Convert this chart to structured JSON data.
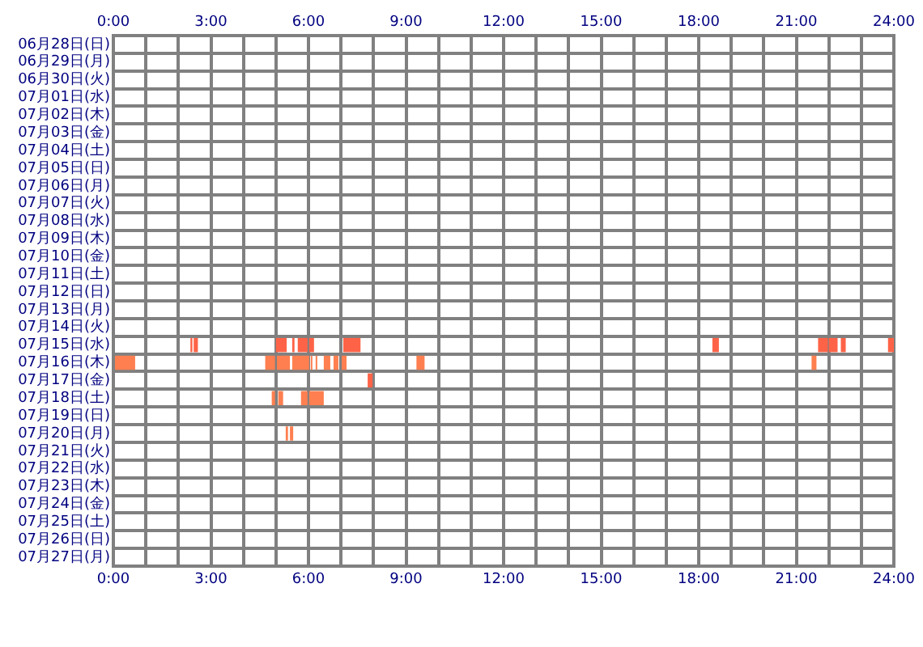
{
  "chart_data": {
    "type": "bar",
    "orientation": "horizontal",
    "grid": true,
    "legend": false,
    "categories": [
      "06月28日(日)",
      "06月29日(月)",
      "06月30日(火)",
      "07月01日(水)",
      "07月02日(木)",
      "07月03日(金)",
      "07月04日(土)",
      "07月05日(日)",
      "07月06日(月)",
      "07月07日(火)",
      "07月08日(水)",
      "07月09日(木)",
      "07月10日(金)",
      "07月11日(土)",
      "07月12日(日)",
      "07月13日(月)",
      "07月14日(火)",
      "07月15日(水)",
      "07月16日(木)",
      "07月17日(金)",
      "07月18日(土)",
      "07月19日(日)",
      "07月20日(月)",
      "07月21日(火)",
      "07月22日(水)",
      "07月23日(木)",
      "07月24日(金)",
      "07月25日(土)",
      "07月26日(日)",
      "07月27日(月)"
    ],
    "xlim": [
      0,
      24
    ],
    "xticks": [
      {
        "value": 0,
        "label": "0:00"
      },
      {
        "value": 1,
        "label": null
      },
      {
        "value": 2,
        "label": null
      },
      {
        "value": 3,
        "label": "3:00"
      },
      {
        "value": 4,
        "label": null
      },
      {
        "value": 5,
        "label": null
      },
      {
        "value": 6,
        "label": "6:00"
      },
      {
        "value": 7,
        "label": null
      },
      {
        "value": 8,
        "label": null
      },
      {
        "value": 9,
        "label": "9:00"
      },
      {
        "value": 10,
        "label": null
      },
      {
        "value": 11,
        "label": null
      },
      {
        "value": 12,
        "label": "12:00"
      },
      {
        "value": 13,
        "label": null
      },
      {
        "value": 14,
        "label": null
      },
      {
        "value": 15,
        "label": "15:00"
      },
      {
        "value": 16,
        "label": null
      },
      {
        "value": 17,
        "label": null
      },
      {
        "value": 18,
        "label": "18:00"
      },
      {
        "value": 19,
        "label": null
      },
      {
        "value": 20,
        "label": null
      },
      {
        "value": 21,
        "label": "21:00"
      },
      {
        "value": 22,
        "label": null
      },
      {
        "value": 23,
        "label": null
      },
      {
        "value": 24,
        "label": "24:00"
      }
    ],
    "x2lim": [
      0,
      24
    ],
    "x2ticks": [
      {
        "value": 0,
        "label": "0:00"
      },
      {
        "value": 1,
        "label": null
      },
      {
        "value": 2,
        "label": null
      },
      {
        "value": 3,
        "label": "3:00"
      },
      {
        "value": 4,
        "label": null
      },
      {
        "value": 5,
        "label": null
      },
      {
        "value": 6,
        "label": "6:00"
      },
      {
        "value": 7,
        "label": null
      },
      {
        "value": 8,
        "label": null
      },
      {
        "value": 9,
        "label": "9:00"
      },
      {
        "value": 10,
        "label": null
      },
      {
        "value": 11,
        "label": null
      },
      {
        "value": 12,
        "label": "12:00"
      },
      {
        "value": 13,
        "label": null
      },
      {
        "value": 14,
        "label": null
      },
      {
        "value": 15,
        "label": "15:00"
      },
      {
        "value": 16,
        "label": null
      },
      {
        "value": 17,
        "label": null
      },
      {
        "value": 18,
        "label": "18:00"
      },
      {
        "value": 19,
        "label": null
      },
      {
        "value": 20,
        "label": null
      },
      {
        "value": 21,
        "label": "21:00"
      },
      {
        "value": 22,
        "label": null
      },
      {
        "value": 23,
        "label": null
      },
      {
        "value": 24,
        "label": "24:00"
      }
    ],
    "series": [
      {
        "base": [
          null,
          null,
          null,
          null,
          null,
          null,
          null,
          null,
          null,
          null,
          null,
          null,
          null,
          null,
          null,
          null,
          null,
          2.37,
          0,
          7.82,
          4.87,
          null,
          5.3,
          null,
          null,
          null,
          null,
          null,
          null,
          null
        ],
        "values": [
          null,
          null,
          null,
          null,
          null,
          null,
          null,
          null,
          null,
          null,
          null,
          null,
          null,
          null,
          null,
          null,
          null,
          0.06,
          0.67,
          0.15,
          0.1,
          null,
          0.07,
          null,
          null,
          null,
          null,
          null,
          null,
          null
        ],
        "colors": [
          null,
          null,
          null,
          null,
          null,
          null,
          null,
          null,
          null,
          null,
          null,
          null,
          null,
          null,
          null,
          null,
          null,
          "#ff6347",
          "#ff7f50",
          "#ff6347",
          "#ff7f50",
          null,
          "#ff7f50",
          null,
          null,
          null,
          null,
          null,
          null,
          null
        ]
      },
      {
        "base": [
          null,
          null,
          null,
          null,
          null,
          null,
          null,
          null,
          null,
          null,
          null,
          null,
          null,
          null,
          null,
          null,
          null,
          2.47,
          4.67,
          null,
          5.07,
          null,
          5.43,
          null,
          null,
          null,
          null,
          null,
          null,
          null
        ],
        "values": [
          null,
          null,
          null,
          null,
          null,
          null,
          null,
          null,
          null,
          null,
          null,
          null,
          null,
          null,
          null,
          null,
          null,
          0.13,
          0.3,
          null,
          0.15,
          null,
          0.1,
          null,
          null,
          null,
          null,
          null,
          null,
          null
        ],
        "colors": [
          null,
          null,
          null,
          null,
          null,
          null,
          null,
          null,
          null,
          null,
          null,
          null,
          null,
          null,
          null,
          null,
          null,
          "#ff6347",
          "#ff7f50",
          null,
          "#ff7f50",
          null,
          "#ff7f50",
          null,
          null,
          null,
          null,
          null,
          null,
          null
        ]
      },
      {
        "base": [
          null,
          null,
          null,
          null,
          null,
          null,
          null,
          null,
          null,
          null,
          null,
          null,
          null,
          null,
          null,
          null,
          null,
          5.0,
          5.03,
          null,
          5.77,
          null,
          null,
          null,
          null,
          null,
          null,
          null,
          null,
          null
        ],
        "values": [
          null,
          null,
          null,
          null,
          null,
          null,
          null,
          null,
          null,
          null,
          null,
          null,
          null,
          null,
          null,
          null,
          null,
          0.33,
          0.4,
          null,
          0.2,
          null,
          null,
          null,
          null,
          null,
          null,
          null,
          null,
          null
        ],
        "colors": [
          null,
          null,
          null,
          null,
          null,
          null,
          null,
          null,
          null,
          null,
          null,
          null,
          null,
          null,
          null,
          null,
          null,
          "#ff6347",
          "#ff7f50",
          null,
          "#ff7f50",
          null,
          null,
          null,
          null,
          null,
          null,
          null,
          null,
          null
        ]
      },
      {
        "base": [
          null,
          null,
          null,
          null,
          null,
          null,
          null,
          null,
          null,
          null,
          null,
          null,
          null,
          null,
          null,
          null,
          null,
          5.5,
          5.5,
          null,
          6.02,
          null,
          null,
          null,
          null,
          null,
          null,
          null,
          null,
          null
        ],
        "values": [
          null,
          null,
          null,
          null,
          null,
          null,
          null,
          null,
          null,
          null,
          null,
          null,
          null,
          null,
          null,
          null,
          null,
          0.07,
          0.52,
          null,
          0.45,
          null,
          null,
          null,
          null,
          null,
          null,
          null,
          null,
          null
        ],
        "colors": [
          null,
          null,
          null,
          null,
          null,
          null,
          null,
          null,
          null,
          null,
          null,
          null,
          null,
          null,
          null,
          null,
          null,
          "#ff6347",
          "#ff7f50",
          null,
          "#ff7f50",
          null,
          null,
          null,
          null,
          null,
          null,
          null,
          null,
          null
        ]
      },
      {
        "base": [
          null,
          null,
          null,
          null,
          null,
          null,
          null,
          null,
          null,
          null,
          null,
          null,
          null,
          null,
          null,
          null,
          null,
          5.67,
          6.07,
          null,
          null,
          null,
          null,
          null,
          null,
          null,
          null,
          null,
          null,
          null
        ],
        "values": [
          null,
          null,
          null,
          null,
          null,
          null,
          null,
          null,
          null,
          null,
          null,
          null,
          null,
          null,
          null,
          null,
          null,
          0.3,
          0.05,
          null,
          null,
          null,
          null,
          null,
          null,
          null,
          null,
          null,
          null,
          null
        ],
        "colors": [
          null,
          null,
          null,
          null,
          null,
          null,
          null,
          null,
          null,
          null,
          null,
          null,
          null,
          null,
          null,
          null,
          null,
          "#ff6347",
          "#ff7f50",
          null,
          null,
          null,
          null,
          null,
          null,
          null,
          null,
          null,
          null,
          null
        ]
      },
      {
        "base": [
          null,
          null,
          null,
          null,
          null,
          null,
          null,
          null,
          null,
          null,
          null,
          null,
          null,
          null,
          null,
          null,
          null,
          6.02,
          6.22,
          null,
          null,
          null,
          null,
          null,
          null,
          null,
          null,
          null,
          null,
          null
        ],
        "values": [
          null,
          null,
          null,
          null,
          null,
          null,
          null,
          null,
          null,
          null,
          null,
          null,
          null,
          null,
          null,
          null,
          null,
          0.15,
          0.05,
          null,
          null,
          null,
          null,
          null,
          null,
          null,
          null,
          null,
          null,
          null
        ],
        "colors": [
          null,
          null,
          null,
          null,
          null,
          null,
          null,
          null,
          null,
          null,
          null,
          null,
          null,
          null,
          null,
          null,
          null,
          "#ff6347",
          "#ff7f50",
          null,
          null,
          null,
          null,
          null,
          null,
          null,
          null,
          null,
          null,
          null
        ]
      },
      {
        "base": [
          null,
          null,
          null,
          null,
          null,
          null,
          null,
          null,
          null,
          null,
          null,
          null,
          null,
          null,
          null,
          null,
          null,
          7.07,
          6.47,
          null,
          null,
          null,
          null,
          null,
          null,
          null,
          null,
          null,
          null,
          null
        ],
        "values": [
          null,
          null,
          null,
          null,
          null,
          null,
          null,
          null,
          null,
          null,
          null,
          null,
          null,
          null,
          null,
          null,
          null,
          0.53,
          0.2,
          null,
          null,
          null,
          null,
          null,
          null,
          null,
          null,
          null,
          null,
          null
        ],
        "colors": [
          null,
          null,
          null,
          null,
          null,
          null,
          null,
          null,
          null,
          null,
          null,
          null,
          null,
          null,
          null,
          null,
          null,
          "#ff6347",
          "#ff7f50",
          null,
          null,
          null,
          null,
          null,
          null,
          null,
          null,
          null,
          null,
          null
        ]
      },
      {
        "base": [
          null,
          null,
          null,
          null,
          null,
          null,
          null,
          null,
          null,
          null,
          null,
          null,
          null,
          null,
          null,
          null,
          null,
          18.42,
          6.77,
          null,
          null,
          null,
          null,
          null,
          null,
          null,
          null,
          null,
          null,
          null
        ],
        "values": [
          null,
          null,
          null,
          null,
          null,
          null,
          null,
          null,
          null,
          null,
          null,
          null,
          null,
          null,
          null,
          null,
          null,
          0.2,
          0.15,
          null,
          null,
          null,
          null,
          null,
          null,
          null,
          null,
          null,
          null,
          null
        ],
        "colors": [
          null,
          null,
          null,
          null,
          null,
          null,
          null,
          null,
          null,
          null,
          null,
          null,
          null,
          null,
          null,
          null,
          null,
          "#ff6347",
          "#ff7f50",
          null,
          null,
          null,
          null,
          null,
          null,
          null,
          null,
          null,
          null,
          null
        ]
      },
      {
        "base": [
          null,
          null,
          null,
          null,
          null,
          null,
          null,
          null,
          null,
          null,
          null,
          null,
          null,
          null,
          null,
          null,
          null,
          21.67,
          7.02,
          null,
          null,
          null,
          null,
          null,
          null,
          null,
          null,
          null,
          null,
          null
        ],
        "values": [
          null,
          null,
          null,
          null,
          null,
          null,
          null,
          null,
          null,
          null,
          null,
          null,
          null,
          null,
          null,
          null,
          null,
          0.3,
          0.15,
          null,
          null,
          null,
          null,
          null,
          null,
          null,
          null,
          null,
          null,
          null
        ],
        "colors": [
          null,
          null,
          null,
          null,
          null,
          null,
          null,
          null,
          null,
          null,
          null,
          null,
          null,
          null,
          null,
          null,
          null,
          "#ff6347",
          "#ff7f50",
          null,
          null,
          null,
          null,
          null,
          null,
          null,
          null,
          null,
          null,
          null
        ]
      },
      {
        "base": [
          null,
          null,
          null,
          null,
          null,
          null,
          null,
          null,
          null,
          null,
          null,
          null,
          null,
          null,
          null,
          null,
          null,
          22.0,
          9.32,
          null,
          null,
          null,
          null,
          null,
          null,
          null,
          null,
          null,
          null,
          null
        ],
        "values": [
          null,
          null,
          null,
          null,
          null,
          null,
          null,
          null,
          null,
          null,
          null,
          null,
          null,
          null,
          null,
          null,
          null,
          0.27,
          0.25,
          null,
          null,
          null,
          null,
          null,
          null,
          null,
          null,
          null,
          null,
          null
        ],
        "colors": [
          null,
          null,
          null,
          null,
          null,
          null,
          null,
          null,
          null,
          null,
          null,
          null,
          null,
          null,
          null,
          null,
          null,
          "#ff6347",
          "#ff7f50",
          null,
          null,
          null,
          null,
          null,
          null,
          null,
          null,
          null,
          null,
          null
        ]
      },
      {
        "base": [
          null,
          null,
          null,
          null,
          null,
          null,
          null,
          null,
          null,
          null,
          null,
          null,
          null,
          null,
          null,
          null,
          null,
          22.37,
          21.47,
          null,
          null,
          null,
          null,
          null,
          null,
          null,
          null,
          null,
          null,
          null
        ],
        "values": [
          null,
          null,
          null,
          null,
          null,
          null,
          null,
          null,
          null,
          null,
          null,
          null,
          null,
          null,
          null,
          null,
          null,
          0.15,
          0.15,
          null,
          null,
          null,
          null,
          null,
          null,
          null,
          null,
          null,
          null,
          null
        ],
        "colors": [
          null,
          null,
          null,
          null,
          null,
          null,
          null,
          null,
          null,
          null,
          null,
          null,
          null,
          null,
          null,
          null,
          null,
          "#ff6347",
          "#ff7f50",
          null,
          null,
          null,
          null,
          null,
          null,
          null,
          null,
          null,
          null,
          null
        ]
      },
      {
        "base": [
          null,
          null,
          null,
          null,
          null,
          null,
          null,
          null,
          null,
          null,
          null,
          null,
          null,
          null,
          null,
          null,
          null,
          23.82,
          null,
          null,
          null,
          null,
          null,
          null,
          null,
          null,
          null,
          null,
          null,
          null
        ],
        "values": [
          null,
          null,
          null,
          null,
          null,
          null,
          null,
          null,
          null,
          null,
          null,
          null,
          null,
          null,
          null,
          null,
          null,
          0.18,
          null,
          null,
          null,
          null,
          null,
          null,
          null,
          null,
          null,
          null,
          null,
          null
        ],
        "colors": [
          null,
          null,
          null,
          null,
          null,
          null,
          null,
          null,
          null,
          null,
          null,
          null,
          null,
          null,
          null,
          null,
          null,
          "#ff6347",
          null,
          null,
          null,
          null,
          null,
          null,
          null,
          null,
          null,
          null,
          null,
          null
        ]
      }
    ]
  }
}
